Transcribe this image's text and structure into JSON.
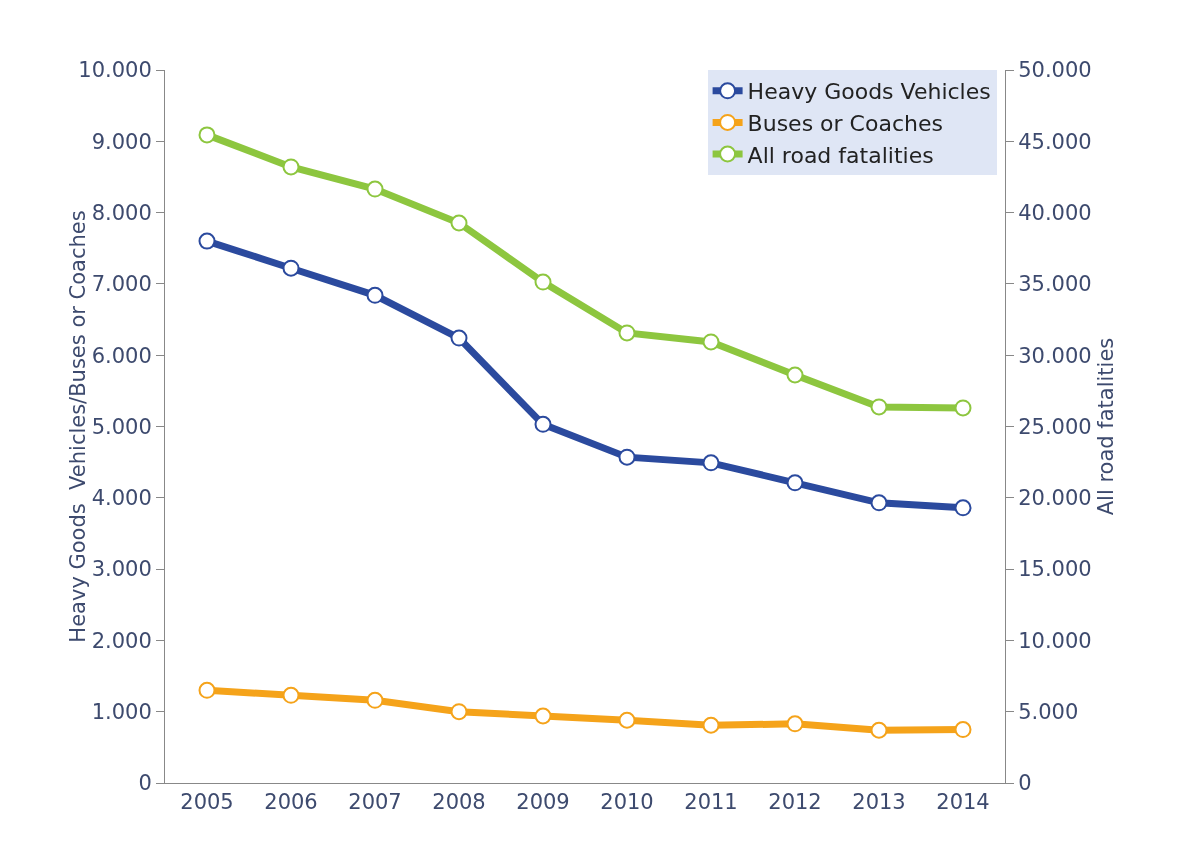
{
  "chart_data": {
    "type": "line",
    "categories": [
      "2005",
      "2006",
      "2007",
      "2008",
      "2009",
      "2010",
      "2011",
      "2012",
      "2013",
      "2014"
    ],
    "series": [
      {
        "name": "Heavy Goods Vehicles",
        "color": "#2b4a9e",
        "values": [
          7600,
          7220,
          6840,
          6240,
          5030,
          4570,
          4490,
          4210,
          3930,
          3860
        ]
      },
      {
        "name": "Buses or Coaches",
        "color": "#f5a31a",
        "values": [
          1300,
          1230,
          1160,
          1000,
          940,
          880,
          810,
          830,
          740,
          750
        ]
      },
      {
        "name": "All road fatalities",
        "color": "#8dc63f",
        "axis": "y2",
        "values": [
          45450,
          43200,
          41650,
          39270,
          35130,
          31560,
          30930,
          28610,
          26370,
          26300
        ]
      }
    ],
    "ylabel": "Heavy Goods  Vehicles/Buses or Coaches",
    "y2label": "All road fatalities",
    "ylim": [
      0,
      10000
    ],
    "yticks": [
      0,
      {
        "value": 1000,
        "label": "1.000"
      },
      {
        "value": 2000,
        "label": "2.000"
      },
      {
        "value": 3000,
        "label": "3.000"
      },
      {
        "value": 4000,
        "label": "4.000"
      },
      {
        "value": 5000,
        "label": "5.000"
      },
      {
        "value": 6000,
        "label": "6.000"
      },
      {
        "value": 7000,
        "label": "7.000"
      },
      {
        "value": 8000,
        "label": "8.000"
      },
      {
        "value": 9000,
        "label": "9.000"
      },
      {
        "value": 10000,
        "label": "10.000"
      }
    ],
    "y2lim": [
      0,
      50000
    ],
    "y2ticks": [
      0,
      {
        "value": 5000,
        "label": "5.000"
      },
      {
        "value": 10000,
        "label": "10.000"
      },
      {
        "value": 15000,
        "label": "15.000"
      },
      {
        "value": 20000,
        "label": "20.000"
      },
      {
        "value": 25000,
        "label": "25.000"
      },
      {
        "value": 30000,
        "label": "30.000"
      },
      {
        "value": 35000,
        "label": "35.000"
      },
      {
        "value": 40000,
        "label": "40.000"
      },
      {
        "value": 45000,
        "label": "45.000"
      },
      {
        "value": 50000,
        "label": "50.000"
      }
    ],
    "grid": false,
    "legend": "top right",
    "marker": "circle",
    "line_style": "solid"
  }
}
